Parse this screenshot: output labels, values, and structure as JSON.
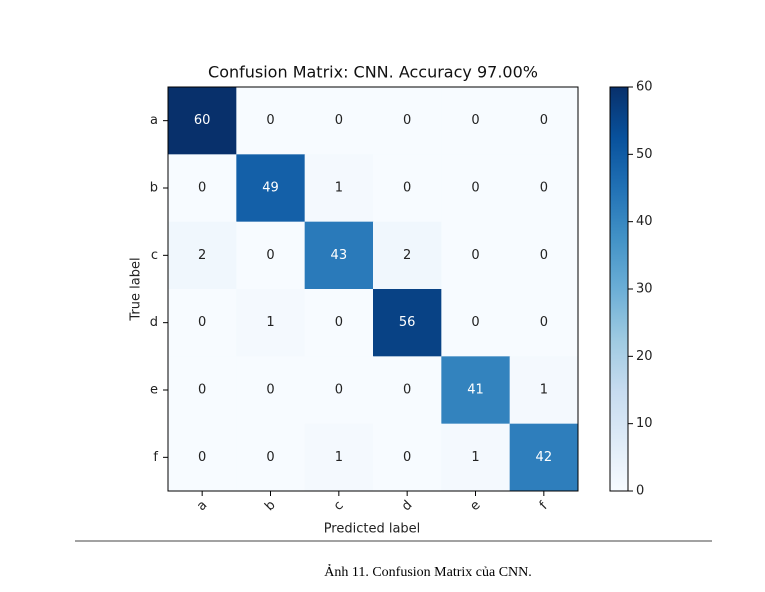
{
  "chart_data": {
    "type": "heatmap",
    "title": "Confusion Matrix: CNN. Accuracy 97.00%",
    "x_label": "Predicted label",
    "y_label": "True label",
    "x_categories": [
      "a",
      "b",
      "c",
      "d",
      "e",
      "f"
    ],
    "y_categories": [
      "a",
      "b",
      "c",
      "d",
      "e",
      "f"
    ],
    "values": [
      [
        60,
        0,
        0,
        0,
        0,
        0
      ],
      [
        0,
        49,
        1,
        0,
        0,
        0
      ],
      [
        2,
        0,
        43,
        2,
        0,
        0
      ],
      [
        0,
        1,
        0,
        56,
        0,
        0
      ],
      [
        0,
        0,
        0,
        0,
        41,
        1
      ],
      [
        0,
        0,
        1,
        0,
        1,
        42
      ]
    ],
    "zlim": [
      0,
      60
    ],
    "zticks": [
      0,
      10,
      20,
      30,
      40,
      50,
      60
    ],
    "colormap": "Blues"
  },
  "caption": "Ảnh 11. Confusion Matrix của CNN."
}
